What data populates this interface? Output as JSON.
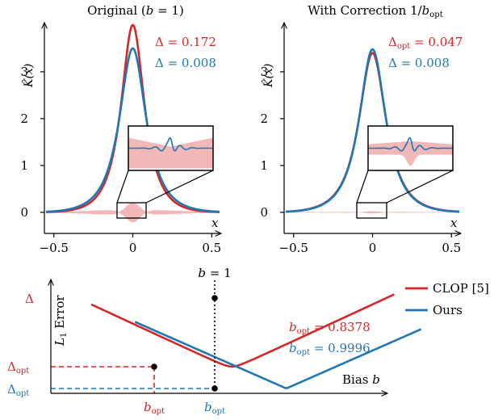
{
  "colors": {
    "clop": "#d62728",
    "ours": "#1f77b4",
    "fill": "#f2b8b8",
    "axis": "#000000"
  },
  "chart_data": [
    {
      "type": "line",
      "title": "Original (b = 1)",
      "ylabel": "K̂(x)",
      "xlabel": "x",
      "xlim": [
        -0.56,
        0.56
      ],
      "ylim": [
        -0.45,
        4.05
      ],
      "xticks": [
        -0.5,
        0,
        0.5
      ],
      "xtick_labels": [
        "−0.5",
        "0",
        "0.5"
      ],
      "yticks": [
        0,
        1,
        2,
        3
      ],
      "ytick_labels": [
        "0",
        "1",
        "2",
        "3"
      ],
      "grid": false,
      "series": [
        {
          "name": "CLOP [5]",
          "color": "clop",
          "peak": 4.0,
          "width": 0.1
        },
        {
          "name": "Ours",
          "color": "ours",
          "peak": 3.5,
          "width": 0.114
        }
      ],
      "annotations": [
        "Δ = 0.172",
        "Δ = 0.008"
      ],
      "inset": {
        "x_range": [
          -0.1,
          0.1
        ],
        "y_range": [
          -0.3,
          0.15
        ]
      }
    },
    {
      "type": "line",
      "title": "With Correction 1/b_opt",
      "ylabel": "K̂(x)",
      "xlabel": "x",
      "xlim": [
        -0.56,
        0.56
      ],
      "ylim": [
        -0.45,
        4.05
      ],
      "xticks": [
        -0.5,
        0,
        0.5
      ],
      "xtick_labels": [
        "−0.5",
        "0",
        "0.5"
      ],
      "yticks": [
        0,
        1,
        2,
        3
      ],
      "ytick_labels": [
        "0",
        "1",
        "2",
        "3"
      ],
      "grid": false,
      "series": [
        {
          "name": "CLOP [5]",
          "color": "clop",
          "peak": 3.4,
          "width": 0.117
        },
        {
          "name": "Ours",
          "color": "ours",
          "peak": 3.48,
          "width": 0.114
        }
      ],
      "annotations": [
        "Δ_opt = 0.047",
        "Δ = 0.008"
      ],
      "inset": {
        "x_range": [
          -0.1,
          0.1
        ],
        "y_range": [
          -0.3,
          0.15
        ]
      }
    },
    {
      "type": "line",
      "title": "",
      "xlabel": "Bias b",
      "ylabel": "L1 Error",
      "xlim": [
        0.3,
        1.3
      ],
      "ylim": [
        0,
        1
      ],
      "grid": false,
      "series": [
        {
          "name": "CLOP [5]",
          "color": "clop",
          "optimum": 0.8378
        },
        {
          "name": "Ours",
          "color": "ours",
          "optimum": 0.9996
        }
      ],
      "ytick_labels": [
        "Δ",
        "Δ_opt",
        "Δ_opt"
      ],
      "xtick_labels": [
        "b_opt",
        "b_opt"
      ],
      "reference_line": "b = 1",
      "annotations": [
        "b_opt = 0.8378",
        "b_opt = 0.9996"
      ]
    }
  ],
  "legend": {
    "placement": "top-right",
    "items": [
      "CLOP [5]",
      "Ours"
    ]
  }
}
